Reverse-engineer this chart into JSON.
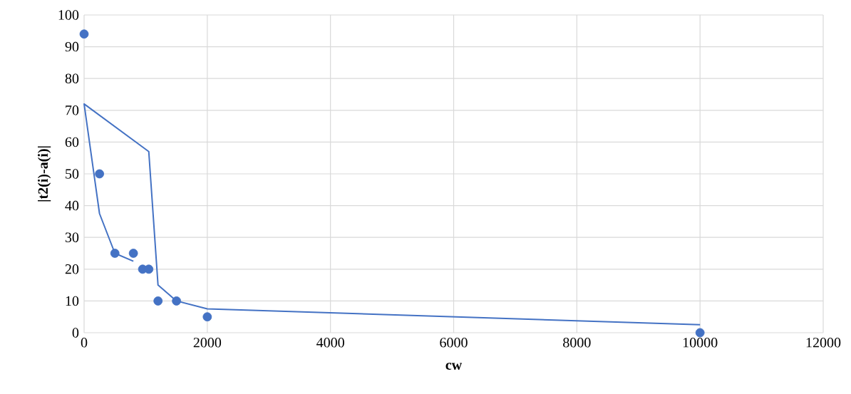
{
  "chart_data": {
    "type": "scatter",
    "xlabel": "cw",
    "ylabel": "|t2(i)-a(i)|",
    "xlim": [
      0,
      12000
    ],
    "xticks": [
      0,
      2000,
      4000,
      6000,
      8000,
      10000,
      12000
    ],
    "ylim": [
      0,
      100
    ],
    "yticks": [
      0,
      10,
      20,
      30,
      40,
      50,
      60,
      70,
      80,
      90,
      100
    ],
    "grid": true,
    "series": [
      {
        "marker": "circle",
        "color": "#4472c4",
        "x": [
          0,
          250,
          500,
          800,
          950,
          1050,
          1200,
          1500,
          2000,
          10000
        ],
        "values": [
          94,
          50,
          25,
          25,
          20,
          20,
          10,
          10,
          5,
          0
        ]
      },
      {
        "type": "line",
        "marker": "none",
        "line_style": "solid",
        "color": "#4472c4",
        "x": [
          800,
          500,
          250,
          0,
          1050,
          1200,
          1500,
          2000,
          10000
        ],
        "values": [
          22.5,
          25,
          37.5,
          72,
          57,
          15,
          10,
          7.5,
          2.5
        ]
      }
    ]
  }
}
